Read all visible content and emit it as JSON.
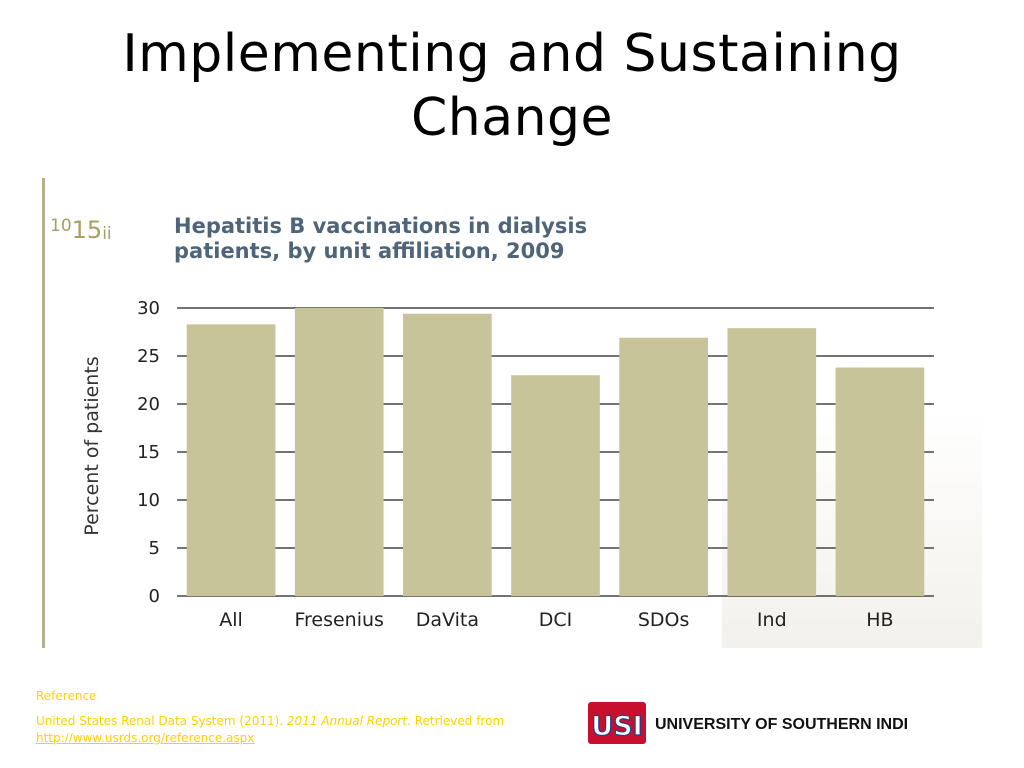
{
  "slide": {
    "title_line1": "Implementing and Sustaining",
    "title_line2": "Change"
  },
  "figure": {
    "number_parts": [
      "10",
      "15",
      "ii"
    ]
  },
  "chart_data": {
    "type": "bar",
    "title_line1": "Hepatitis B vaccinations in dialysis",
    "title_line2": "patients, by unit affiliation, 2009",
    "categories": [
      "All",
      "Fresenius",
      "DaVita",
      "DCI",
      "SDOs",
      "Ind",
      "HB"
    ],
    "values": [
      28.3,
      30.0,
      29.4,
      23.0,
      26.9,
      27.9,
      23.8
    ],
    "ylabel": "Percent of patients",
    "xlabel": "",
    "ylim": [
      0,
      30
    ],
    "yticks": [
      0,
      5,
      10,
      15,
      20,
      25,
      30
    ],
    "grid": true,
    "bar_color": "#c8c49a",
    "title_color": "#4e6479"
  },
  "reference": {
    "label": "Reference",
    "text_part1": "United States Renal Data System (2011). ",
    "text_italic": "2011 Annual Report",
    "text_part2": ". Retrieved from ",
    "link": "http://www.usrds.org/reference.aspx"
  },
  "logo": {
    "mark": "USI",
    "name": "UNIVERSITY OF SOUTHERN INDIANA",
    "red": "#c8102e",
    "blue": "#1c3f94"
  }
}
